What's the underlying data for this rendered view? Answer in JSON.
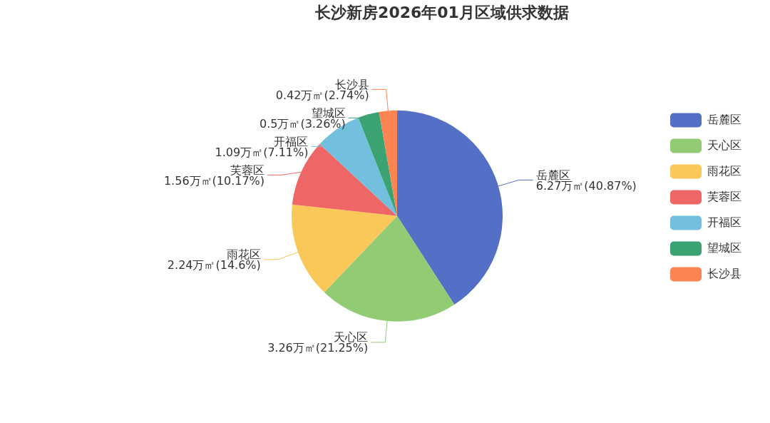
{
  "chart_data": {
    "type": "pie",
    "title": "长沙新房2026年01月区域供求数据",
    "categories": [
      "岳麓区",
      "天心区",
      "雨花区",
      "芙蓉区",
      "开福区",
      "望城区",
      "长沙县"
    ],
    "values": [
      6.27,
      3.26,
      2.24,
      1.56,
      1.09,
      0.5,
      0.42
    ],
    "colors": [
      "#5470c6",
      "#91cc75",
      "#fac858",
      "#ee6666",
      "#73c0de",
      "#3ba272",
      "#fc8452"
    ],
    "value_labels": [
      "6.27万㎡(40.87%)",
      "3.26万㎡(21.25%)",
      "2.24万㎡(14.6%)",
      "1.56万㎡(10.17%)",
      "1.09万㎡(7.11%)",
      "0.5万㎡(3.26%)",
      "0.42万㎡(2.74%)"
    ],
    "legend": "right"
  }
}
